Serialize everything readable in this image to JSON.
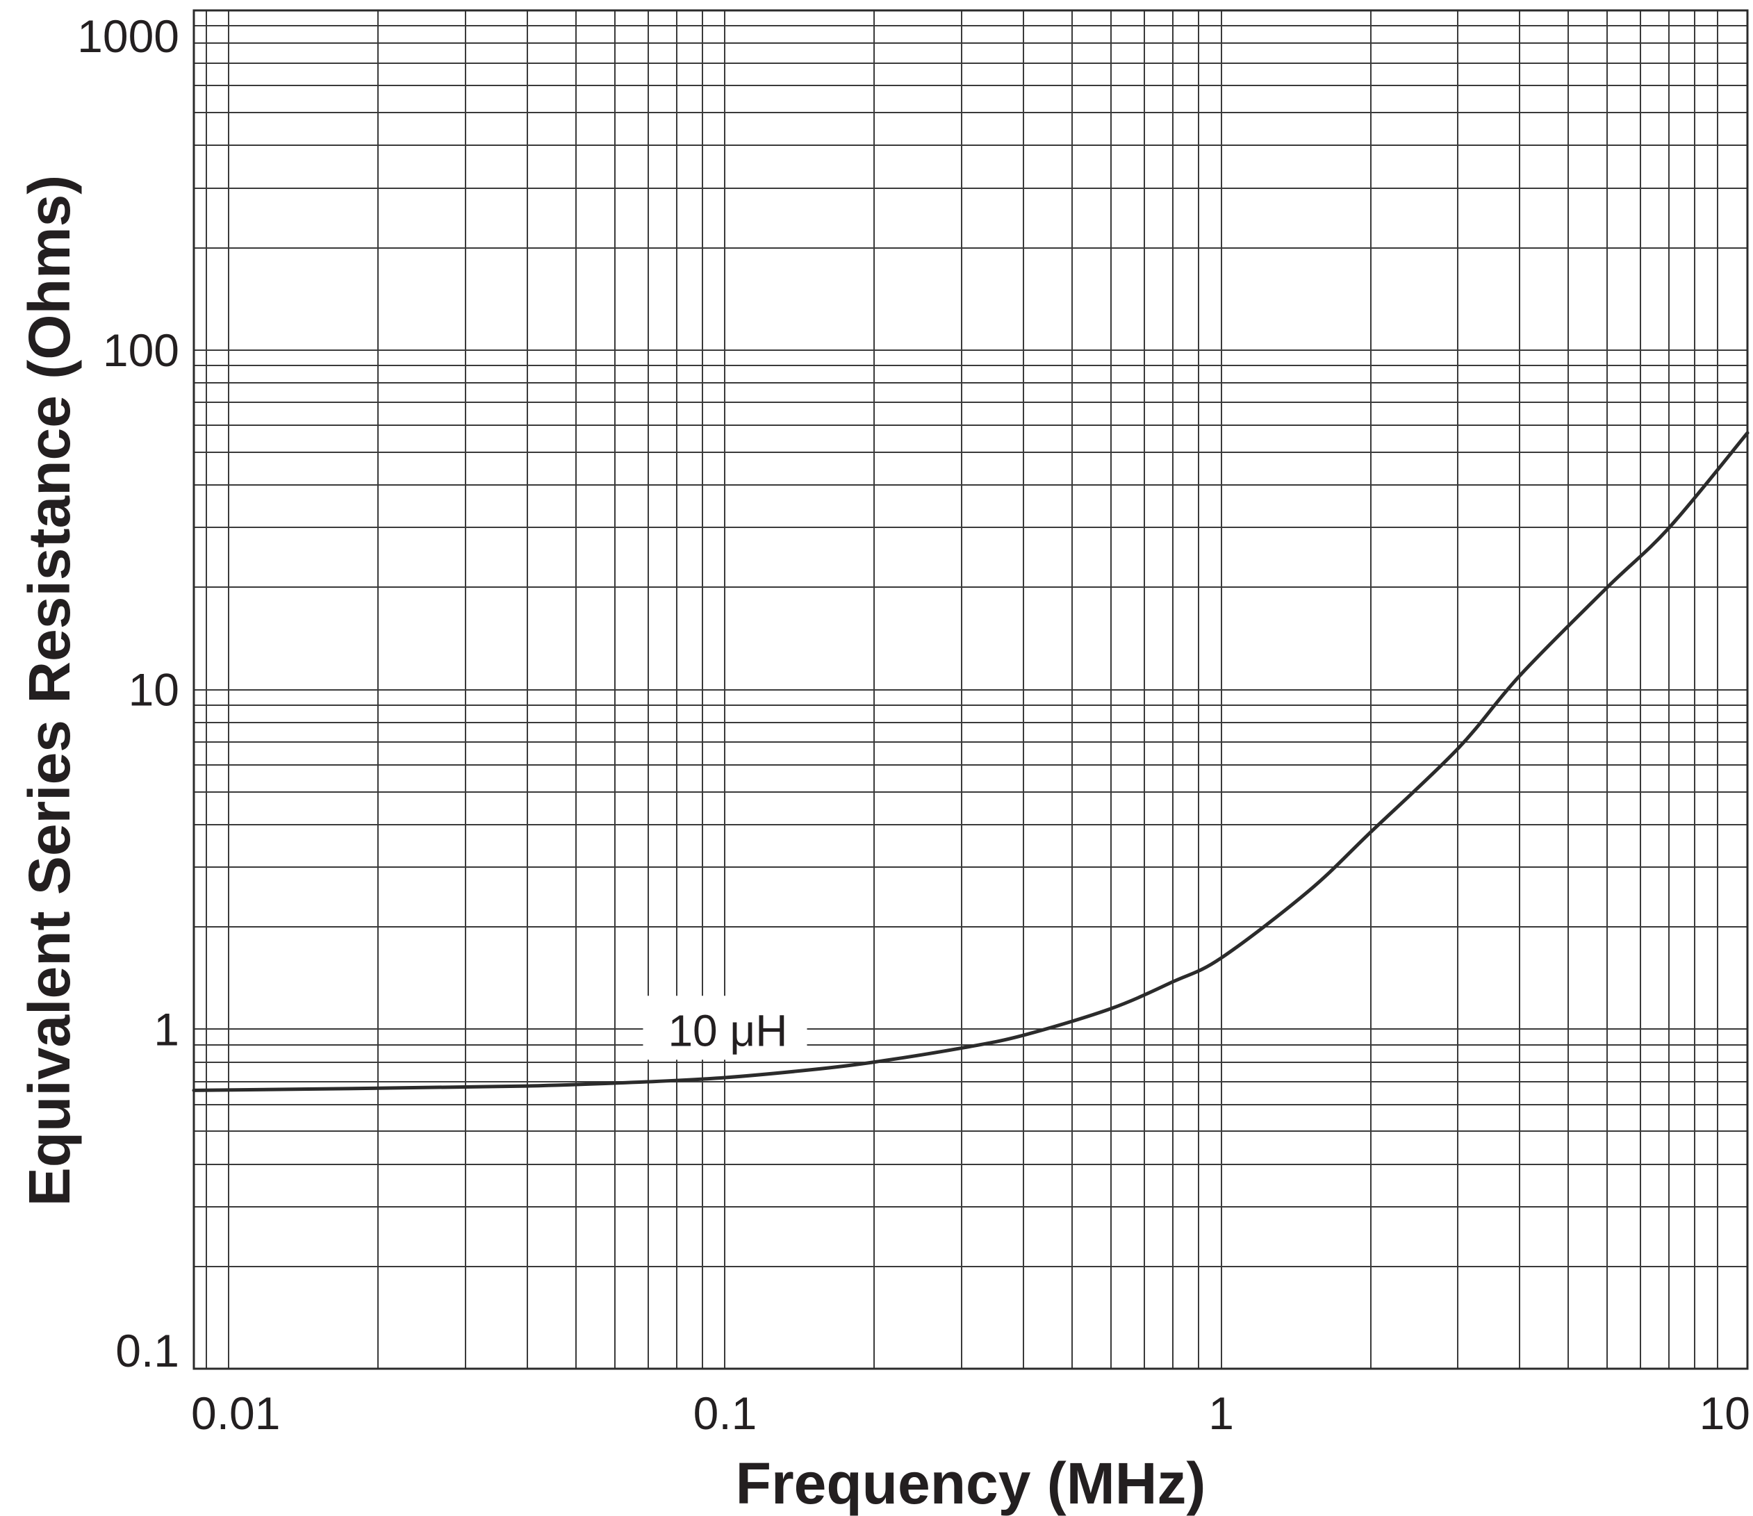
{
  "chart_data": {
    "type": "line",
    "xlabel": "Frequency (MHz)",
    "ylabel": "Equivalent Series Resistance (Ohms)",
    "xscale": "log",
    "yscale": "log",
    "xlim": [
      0.0085,
      11.5
    ],
    "ylim": [
      0.1,
      1000
    ],
    "grid": true,
    "x_ticks": [
      {
        "value": 0.01,
        "label": "0.01"
      },
      {
        "value": 0.1,
        "label": "0.1"
      },
      {
        "value": 1,
        "label": "1"
      },
      {
        "value": 10,
        "label": "10"
      }
    ],
    "y_ticks": [
      {
        "value": 0.1,
        "label": "0.1"
      },
      {
        "value": 1,
        "label": "1"
      },
      {
        "value": 10,
        "label": "10"
      },
      {
        "value": 100,
        "label": "100"
      },
      {
        "value": 1000,
        "label": "1000"
      }
    ],
    "series": [
      {
        "x": [
          0.0085,
          0.02,
          0.04,
          0.07,
          0.1,
          0.15,
          0.2,
          0.3,
          0.4,
          0.6,
          0.8,
          1.0,
          1.5,
          2.0,
          3.0,
          4.0,
          6.0,
          8.0,
          11.5
        ],
        "y": [
          0.66,
          0.67,
          0.68,
          0.7,
          0.72,
          0.76,
          0.8,
          0.88,
          0.96,
          1.15,
          1.38,
          1.62,
          2.55,
          3.8,
          6.7,
          11.0,
          20.0,
          30.0,
          57.0
        ]
      }
    ],
    "annotations": [
      {
        "text": "10 μH",
        "x": 0.1,
        "y": 1.0
      }
    ]
  }
}
